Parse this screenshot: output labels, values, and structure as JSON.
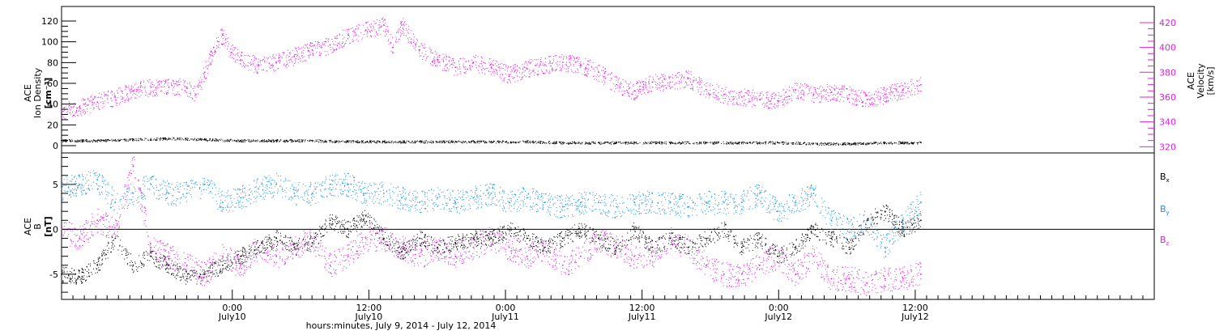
{
  "chart_data": [
    {
      "type": "scatter",
      "panel": "top",
      "ylabel_left": [
        "ACE",
        "Ion Density",
        "[cm⁻³]"
      ],
      "ylabel_right": [
        "ACE",
        "Velocity",
        "[km/s]"
      ],
      "xlim": [
        0,
        96
      ],
      "ylim_left": [
        -7,
        134
      ],
      "ylim_right": [
        315,
        433
      ],
      "yticks_left": [
        0,
        20,
        40,
        60,
        80,
        100,
        120
      ],
      "yticks_right": [
        320,
        340,
        360,
        380,
        400,
        420
      ],
      "grid": false,
      "series": [
        {
          "axis": "right",
          "color": "#e020e0",
          "points": [
            [
              0,
              349
            ],
            [
              2,
              352
            ],
            [
              4,
              356
            ],
            [
              6,
              360
            ],
            [
              8,
              365
            ],
            [
              10,
              368
            ],
            [
              12,
              368
            ],
            [
              14,
              368
            ],
            [
              15,
              362
            ],
            [
              16,
              380
            ],
            [
              17,
              400
            ],
            [
              18,
              410
            ],
            [
              19,
              396
            ],
            [
              20,
              390
            ],
            [
              22,
              386
            ],
            [
              24,
              388
            ],
            [
              26,
              393
            ],
            [
              28,
              398
            ],
            [
              30,
              402
            ],
            [
              32,
              410
            ],
            [
              34,
              414
            ],
            [
              36,
              418
            ],
            [
              37,
              400
            ],
            [
              38,
              418
            ],
            [
              40,
              398
            ],
            [
              42,
              390
            ],
            [
              44,
              384
            ],
            [
              46,
              388
            ],
            [
              48,
              384
            ],
            [
              50,
              378
            ],
            [
              52,
              383
            ],
            [
              54,
              386
            ],
            [
              56,
              388
            ],
            [
              58,
              386
            ],
            [
              60,
              380
            ],
            [
              62,
              370
            ],
            [
              64,
              365
            ],
            [
              66,
              372
            ],
            [
              68,
              372
            ],
            [
              70,
              375
            ],
            [
              72,
              366
            ],
            [
              74,
              362
            ],
            [
              76,
              360
            ],
            [
              78,
              358
            ],
            [
              80,
              357
            ],
            [
              82,
              366
            ],
            [
              84,
              362
            ],
            [
              86,
              364
            ],
            [
              88,
              362
            ],
            [
              90,
              358
            ],
            [
              92,
              362
            ],
            [
              94,
              366
            ],
            [
              96,
              370
            ]
          ]
        },
        {
          "axis": "left",
          "color": "#000000",
          "points": [
            [
              0,
              5
            ],
            [
              4,
              5
            ],
            [
              8,
              6
            ],
            [
              12,
              7
            ],
            [
              16,
              6
            ],
            [
              20,
              5
            ],
            [
              24,
              5
            ],
            [
              28,
              5
            ],
            [
              32,
              4
            ],
            [
              36,
              4
            ],
            [
              40,
              4
            ],
            [
              44,
              4
            ],
            [
              48,
              4
            ],
            [
              52,
              4
            ],
            [
              56,
              3
            ],
            [
              60,
              3
            ],
            [
              64,
              3
            ],
            [
              68,
              3
            ],
            [
              72,
              3
            ],
            [
              76,
              3
            ],
            [
              80,
              3
            ],
            [
              84,
              2
            ],
            [
              88,
              2
            ],
            [
              92,
              3
            ],
            [
              96,
              3
            ]
          ]
        }
      ]
    },
    {
      "type": "scatter",
      "panel": "bottom",
      "ylabel": [
        "ACE",
        "B",
        "[nT]"
      ],
      "xlim": [
        0,
        96
      ],
      "ylim": [
        -7.8,
        8.5
      ],
      "yticks": [
        -5,
        0,
        5
      ],
      "xlabel": "hours:minutes,  July  9, 2014 - July 12, 2014",
      "xtick_labels": [
        "0:00",
        "12:00",
        "0:00",
        "12:00",
        "0:00",
        "12:00"
      ],
      "xtick_sublabels": [
        "July10",
        "July10",
        "July11",
        "July11",
        "July12",
        "July12"
      ],
      "xtick_positions": [
        15,
        27,
        39,
        51,
        63,
        75
      ],
      "zero_line": true,
      "legend_position": "right",
      "series": [
        {
          "name": "Bx",
          "color": "#000000",
          "points": [
            [
              0,
              -5
            ],
            [
              2,
              -5.3
            ],
            [
              4,
              -4
            ],
            [
              6,
              -1
            ],
            [
              8,
              -4
            ],
            [
              10,
              -3
            ],
            [
              12,
              -4
            ],
            [
              14,
              -5.5
            ],
            [
              16,
              -5
            ],
            [
              18,
              -4
            ],
            [
              20,
              -3
            ],
            [
              22,
              -2
            ],
            [
              24,
              -1
            ],
            [
              26,
              -2
            ],
            [
              28,
              -1.5
            ],
            [
              30,
              1
            ],
            [
              32,
              0
            ],
            [
              34,
              1.5
            ],
            [
              36,
              -1
            ],
            [
              38,
              -2.5
            ],
            [
              40,
              -1
            ],
            [
              42,
              -2
            ],
            [
              44,
              -1.5
            ],
            [
              46,
              -1
            ],
            [
              48,
              -1
            ],
            [
              50,
              0
            ],
            [
              52,
              -1
            ],
            [
              54,
              -2
            ],
            [
              56,
              -1
            ],
            [
              58,
              0
            ],
            [
              60,
              -1
            ],
            [
              62,
              -2
            ],
            [
              64,
              0
            ],
            [
              66,
              -2
            ],
            [
              68,
              -1
            ],
            [
              70,
              -2
            ],
            [
              72,
              -1
            ],
            [
              74,
              0
            ],
            [
              76,
              -2
            ],
            [
              78,
              -1
            ],
            [
              80,
              -3
            ],
            [
              82,
              -2
            ],
            [
              84,
              0
            ],
            [
              86,
              -1
            ],
            [
              88,
              -2
            ],
            [
              90,
              1
            ],
            [
              92,
              2
            ],
            [
              94,
              0
            ],
            [
              96,
              1
            ]
          ]
        },
        {
          "name": "By",
          "color": "#1e90e6",
          "points": [
            [
              0,
              4.5
            ],
            [
              2,
              5
            ],
            [
              4,
              5.5
            ],
            [
              6,
              3
            ],
            [
              8,
              4
            ],
            [
              10,
              5
            ],
            [
              12,
              4
            ],
            [
              14,
              4
            ],
            [
              16,
              5
            ],
            [
              18,
              3
            ],
            [
              20,
              3.5
            ],
            [
              22,
              4.5
            ],
            [
              24,
              5
            ],
            [
              26,
              4
            ],
            [
              28,
              4
            ],
            [
              30,
              5
            ],
            [
              32,
              5
            ],
            [
              34,
              4
            ],
            [
              36,
              4
            ],
            [
              38,
              3.5
            ],
            [
              40,
              3
            ],
            [
              42,
              3.5
            ],
            [
              44,
              3
            ],
            [
              46,
              3.5
            ],
            [
              48,
              4
            ],
            [
              50,
              3
            ],
            [
              52,
              3.5
            ],
            [
              54,
              3
            ],
            [
              56,
              2.5
            ],
            [
              58,
              3
            ],
            [
              60,
              3
            ],
            [
              62,
              2.5
            ],
            [
              64,
              3
            ],
            [
              66,
              3
            ],
            [
              68,
              3
            ],
            [
              70,
              2.5
            ],
            [
              72,
              3
            ],
            [
              74,
              3
            ],
            [
              76,
              3
            ],
            [
              78,
              4
            ],
            [
              80,
              2
            ],
            [
              82,
              3
            ],
            [
              84,
              4
            ],
            [
              86,
              1
            ],
            [
              88,
              0
            ],
            [
              90,
              1
            ],
            [
              92,
              -2
            ],
            [
              94,
              1
            ],
            [
              96,
              3
            ]
          ]
        },
        {
          "name": "Bz",
          "color": "#e020e0",
          "points": [
            [
              0,
              0
            ],
            [
              2,
              -1
            ],
            [
              4,
              1
            ],
            [
              6,
              0
            ],
            [
              8,
              7
            ],
            [
              10,
              -2
            ],
            [
              12,
              -3
            ],
            [
              14,
              -4
            ],
            [
              16,
              -5
            ],
            [
              18,
              -3
            ],
            [
              20,
              -4
            ],
            [
              22,
              -2
            ],
            [
              24,
              -3
            ],
            [
              26,
              -2
            ],
            [
              28,
              -1
            ],
            [
              30,
              -4
            ],
            [
              32,
              -3
            ],
            [
              34,
              -1
            ],
            [
              36,
              -1
            ],
            [
              38,
              -2
            ],
            [
              40,
              -3
            ],
            [
              42,
              -2
            ],
            [
              44,
              -3
            ],
            [
              46,
              -2
            ],
            [
              48,
              -1
            ],
            [
              50,
              -2
            ],
            [
              52,
              -3
            ],
            [
              54,
              -2
            ],
            [
              56,
              -4
            ],
            [
              58,
              -3
            ],
            [
              60,
              -1
            ],
            [
              62,
              -2
            ],
            [
              64,
              -3
            ],
            [
              66,
              -3
            ],
            [
              68,
              -1
            ],
            [
              70,
              -2
            ],
            [
              72,
              -4
            ],
            [
              74,
              -5
            ],
            [
              76,
              -5
            ],
            [
              78,
              -4
            ],
            [
              80,
              -3
            ],
            [
              82,
              -5
            ],
            [
              84,
              -3
            ],
            [
              86,
              -5.5
            ],
            [
              88,
              -5.5
            ],
            [
              90,
              -6
            ],
            [
              92,
              -5.5
            ],
            [
              94,
              -5.5
            ],
            [
              96,
              -5
            ]
          ]
        }
      ]
    }
  ]
}
